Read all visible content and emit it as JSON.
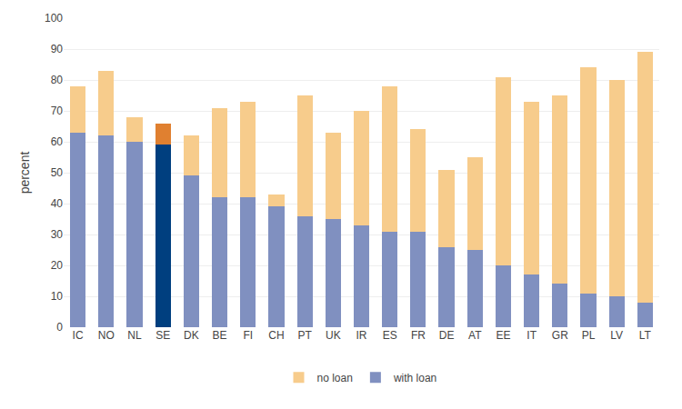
{
  "chart_data": {
    "type": "bar",
    "stacked": true,
    "categories": [
      "IC",
      "NO",
      "NL",
      "SE",
      "DK",
      "BE",
      "FI",
      "CH",
      "PT",
      "UK",
      "IR",
      "ES",
      "FR",
      "DE",
      "AT",
      "EE",
      "IT",
      "GR",
      "PL",
      "LV",
      "LT"
    ],
    "series": [
      {
        "name": "with loan",
        "colors": [
          "#8090c0",
          "#8090c0",
          "#8090c0",
          "#003f7f",
          "#8090c0",
          "#8090c0",
          "#8090c0",
          "#8090c0",
          "#8090c0",
          "#8090c0",
          "#8090c0",
          "#8090c0",
          "#8090c0",
          "#8090c0",
          "#8090c0",
          "#8090c0",
          "#8090c0",
          "#8090c0",
          "#8090c0",
          "#8090c0",
          "#8090c0"
        ],
        "values": [
          63,
          62,
          60,
          59,
          49,
          42,
          42,
          39,
          36,
          35,
          33,
          31,
          31,
          26,
          25,
          20,
          17,
          14,
          11,
          10,
          8
        ]
      },
      {
        "name": "no loan",
        "colors": [
          "#f7cc8c",
          "#f7cc8c",
          "#f7cc8c",
          "#e08030",
          "#f7cc8c",
          "#f7cc8c",
          "#f7cc8c",
          "#f7cc8c",
          "#f7cc8c",
          "#f7cc8c",
          "#f7cc8c",
          "#f7cc8c",
          "#f7cc8c",
          "#f7cc8c",
          "#f7cc8c",
          "#f7cc8c",
          "#f7cc8c",
          "#f7cc8c",
          "#f7cc8c",
          "#f7cc8c",
          "#f7cc8c"
        ],
        "values": [
          15,
          21,
          8,
          7,
          13,
          29,
          31,
          4,
          39,
          28,
          37,
          47,
          33,
          25,
          30,
          61,
          56,
          61,
          73,
          70,
          81
        ]
      }
    ],
    "ylabel": "percent",
    "ylim": [
      0,
      100
    ],
    "yticks": [
      0,
      10,
      20,
      30,
      40,
      50,
      60,
      70,
      80,
      90,
      100
    ],
    "grid": true,
    "legend": "bottom"
  }
}
